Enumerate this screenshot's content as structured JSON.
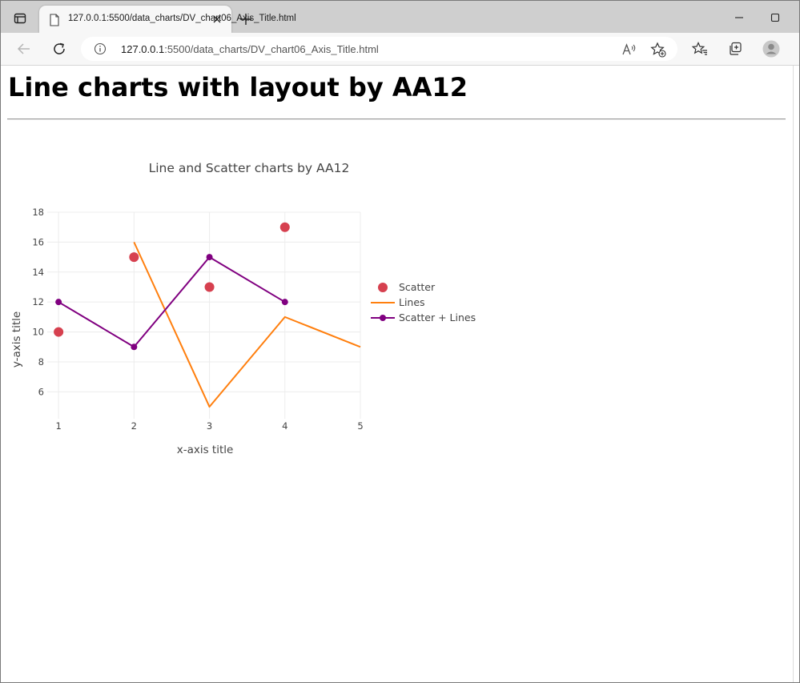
{
  "browser": {
    "tab_title": "127.0.0.1:5500/data_charts/DV_chart06_Axis_Title.html",
    "url_host": "127.0.0.1",
    "url_rest": ":5500/data_charts/DV_chart06_Axis_Title.html"
  },
  "page": {
    "heading": "Line charts with layout by AA12"
  },
  "chart_data": {
    "type": "line",
    "title": "Line and Scatter charts by AA12",
    "xlabel": "x-axis title",
    "ylabel": "y-axis title",
    "xlim": [
      0.85,
      5
    ],
    "ylim": [
      4.2,
      18
    ],
    "x_ticks": [
      1,
      2,
      3,
      4,
      5
    ],
    "y_ticks": [
      6,
      8,
      10,
      12,
      14,
      16,
      18
    ],
    "grid": true,
    "legend_position": "right",
    "series": [
      {
        "name": "Scatter",
        "mode": "markers",
        "color": "#d6404f",
        "x": [
          1,
          2,
          3,
          4
        ],
        "y": [
          10,
          15,
          13,
          17
        ]
      },
      {
        "name": "Lines",
        "mode": "lines",
        "color": "#ff7f0e",
        "x": [
          2,
          3,
          4,
          5
        ],
        "y": [
          16,
          5,
          11,
          9
        ]
      },
      {
        "name": "Scatter + Lines",
        "mode": "lines+markers",
        "color": "#800080",
        "x": [
          1,
          2,
          3,
          4
        ],
        "y": [
          12,
          9,
          15,
          12
        ]
      }
    ]
  }
}
